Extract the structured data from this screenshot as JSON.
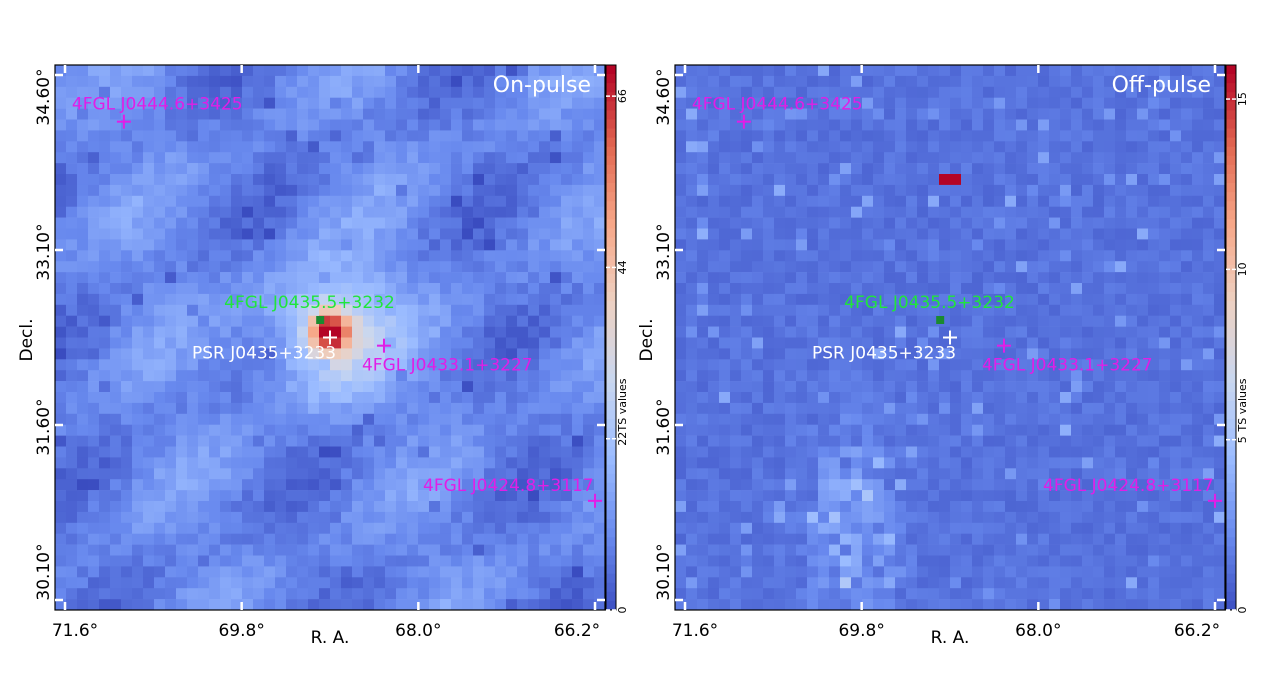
{
  "chart_data": [
    {
      "type": "heatmap",
      "title": "On-pulse",
      "xlabel": "R. A.",
      "ylabel": "Decl.",
      "x_ticks": [
        "71.6°",
        "69.8°",
        "68.0°",
        "66.2°"
      ],
      "y_ticks": [
        "34.60°",
        "33.10°",
        "31.60°",
        "30.10°"
      ],
      "xlim": [
        71.6,
        66.2
      ],
      "ylim": [
        30.1,
        34.6
      ],
      "colorbar": {
        "label": "TS values",
        "ticks": [
          "0",
          "22",
          "44",
          "66"
        ],
        "min": 0,
        "max": 70
      },
      "peak": {
        "ra": 68.9,
        "dec": 32.4,
        "ts": 70
      },
      "sources": [
        {
          "name": "4FGL J0444.6+3425",
          "ra": 71.0,
          "dec": 34.2,
          "marker": "magenta-cross"
        },
        {
          "name": "4FGL J0435.5+3232",
          "ra": 69.0,
          "dec": 32.5,
          "marker": "green-cross"
        },
        {
          "name": "PSR J0435+3233",
          "ra": 68.9,
          "dec": 32.35,
          "marker": "white-cross"
        },
        {
          "name": "4FGL J0433.1+3227",
          "ra": 68.35,
          "dec": 32.28,
          "marker": "magenta-cross"
        },
        {
          "name": "4FGL J0424.8+3117",
          "ra": 66.2,
          "dec": 30.95,
          "marker": "magenta-cross"
        }
      ]
    },
    {
      "type": "heatmap",
      "title": "Off-pulse",
      "xlabel": "R. A.",
      "ylabel": "Decl.",
      "x_ticks": [
        "71.6°",
        "69.8°",
        "68.0°",
        "66.2°"
      ],
      "y_ticks": [
        "34.60°",
        "33.10°",
        "31.60°",
        "30.10°"
      ],
      "xlim": [
        71.6,
        66.2
      ],
      "ylim": [
        30.1,
        34.6
      ],
      "colorbar": {
        "label": "TS values",
        "ticks": [
          "0",
          "5",
          "10",
          "15"
        ],
        "min": 0,
        "max": 16
      },
      "peak": {
        "ra": 68.9,
        "dec": 33.7,
        "ts": 16
      },
      "sources": [
        {
          "name": "4FGL J0444.6+3425",
          "ra": 71.0,
          "dec": 34.2,
          "marker": "magenta-cross"
        },
        {
          "name": "4FGL J0435.5+3232",
          "ra": 69.0,
          "dec": 32.5,
          "marker": "green-cross"
        },
        {
          "name": "PSR J0435+3233",
          "ra": 68.9,
          "dec": 32.35,
          "marker": "white-cross"
        },
        {
          "name": "4FGL J0433.1+3227",
          "ra": 68.35,
          "dec": 32.28,
          "marker": "magenta-cross"
        },
        {
          "name": "4FGL J0424.8+3117",
          "ra": 66.2,
          "dec": 30.95,
          "marker": "magenta-cross"
        }
      ]
    }
  ],
  "colors": {
    "background_blue": "#3b52c4",
    "label_magenta": "#e11ee6",
    "label_green": "#1fe63a",
    "label_white": "#ffffff",
    "colormap": [
      "#3a4cc0",
      "#6889ee",
      "#9abbff",
      "#c9d7f0",
      "#edd1c2",
      "#f7a889",
      "#e26952",
      "#b40426"
    ]
  }
}
